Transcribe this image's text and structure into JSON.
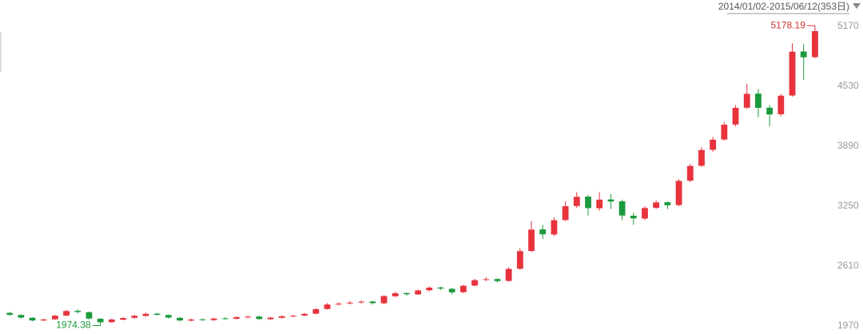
{
  "chart_data": {
    "type": "candlestick",
    "title": "2014/01/02-2015/06/12(353日)",
    "open": [
      2110,
      2088,
      2058,
      2030,
      2042,
      2082,
      2132,
      2118,
      2048,
      2012,
      2038,
      2058,
      2078,
      2102,
      2088,
      2058,
      2028,
      2042,
      2033,
      2052,
      2048,
      2063,
      2072,
      2043,
      2058,
      2073,
      2082,
      2102,
      2152,
      2202,
      2212,
      2222,
      2232,
      2213,
      2288,
      2322,
      2308,
      2352,
      2382,
      2368,
      2332,
      2402,
      2462,
      2472,
      2452,
      2582,
      2772,
      3002,
      2948,
      3102,
      3252,
      3352,
      3228,
      3322,
      3302,
      3148,
      3118,
      3232,
      3292,
      3262,
      3522,
      3682,
      3852,
      3962,
      4122,
      4302,
      4452,
      4302,
      4232,
      4432,
      4902,
      4842
    ],
    "high": [
      2120,
      2095,
      2065,
      2050,
      2090,
      2140,
      2150,
      2125,
      2055,
      2050,
      2065,
      2090,
      2115,
      2110,
      2095,
      2065,
      2050,
      2050,
      2060,
      2065,
      2075,
      2085,
      2080,
      2068,
      2085,
      2090,
      2110,
      2160,
      2215,
      2225,
      2235,
      2245,
      2240,
      2300,
      2335,
      2330,
      2360,
      2395,
      2390,
      2375,
      2410,
      2475,
      2490,
      2480,
      2600,
      2800,
      3090,
      3050,
      3130,
      3300,
      3400,
      3370,
      3400,
      3380,
      3320,
      3180,
      3250,
      3310,
      3300,
      3540,
      3700,
      3880,
      3990,
      4150,
      4330,
      4560,
      4500,
      4330,
      4450,
      4990,
      4980,
      5178.19
    ],
    "low": [
      2080,
      2050,
      2020,
      2020,
      2035,
      2075,
      2105,
      2040,
      1974.38,
      2000,
      2030,
      2050,
      2070,
      2080,
      2050,
      2020,
      2020,
      2025,
      2025,
      2040,
      2040,
      2055,
      2035,
      2035,
      2050,
      2065,
      2075,
      2095,
      2145,
      2190,
      2200,
      2210,
      2200,
      2205,
      2280,
      2295,
      2300,
      2340,
      2355,
      2310,
      2320,
      2395,
      2450,
      2435,
      2445,
      2570,
      2760,
      2900,
      2930,
      3090,
      3230,
      3150,
      3200,
      3220,
      3100,
      3050,
      3100,
      3220,
      3220,
      3250,
      3510,
      3670,
      3830,
      3950,
      4100,
      4290,
      4200,
      4100,
      4210,
      4420,
      4600,
      4830
    ],
    "close": [
      2090,
      2060,
      2030,
      2040,
      2080,
      2130,
      2120,
      2050,
      2010,
      2040,
      2055,
      2080,
      2100,
      2090,
      2060,
      2030,
      2040,
      2035,
      2050,
      2050,
      2065,
      2070,
      2045,
      2060,
      2075,
      2080,
      2100,
      2150,
      2200,
      2210,
      2220,
      2230,
      2215,
      2290,
      2320,
      2310,
      2350,
      2380,
      2370,
      2330,
      2400,
      2460,
      2470,
      2450,
      2580,
      2770,
      3000,
      2950,
      3100,
      3250,
      3350,
      3230,
      3320,
      3300,
      3150,
      3120,
      3230,
      3290,
      3260,
      3520,
      3680,
      3850,
      3960,
      4120,
      4300,
      4450,
      4300,
      4230,
      4430,
      4900,
      4840,
      5120
    ],
    "up_color": "#e8323c",
    "down_color": "#1b9a3c",
    "ylim": [
      1885,
      5452
    ],
    "yticks": [
      1970,
      2610,
      3250,
      3890,
      4530,
      5170
    ]
  }
}
